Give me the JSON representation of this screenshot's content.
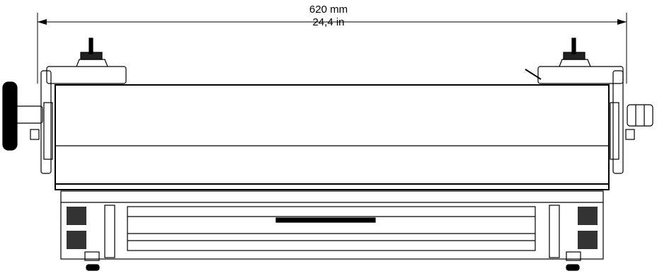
{
  "dimension": {
    "metric": "620 mm",
    "imperial": "24,4 in"
  },
  "colors": {
    "line": "#000000",
    "background": "#ffffff"
  }
}
